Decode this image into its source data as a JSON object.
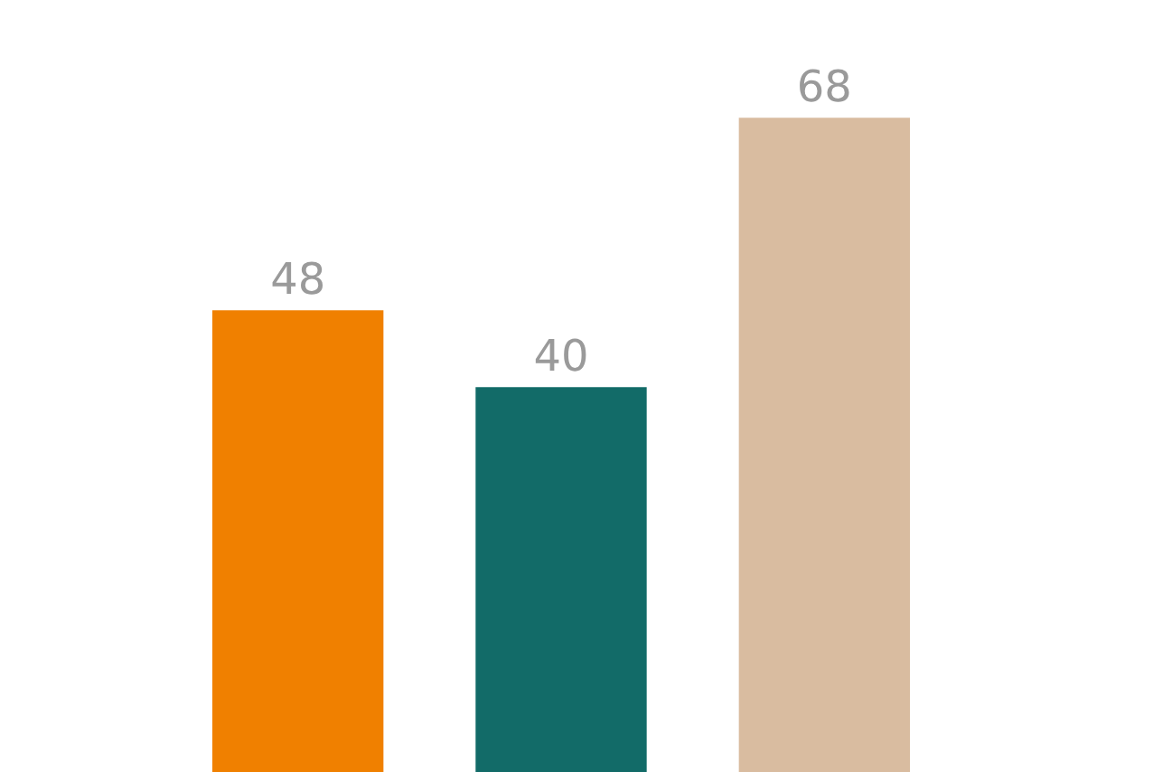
{
  "chart_data": {
    "type": "bar",
    "categories": [
      null,
      null,
      null
    ],
    "values": [
      48,
      40,
      68
    ],
    "colors": [
      "#f08000",
      "#126b68",
      "#d9bca0"
    ],
    "data_labels": true
  }
}
